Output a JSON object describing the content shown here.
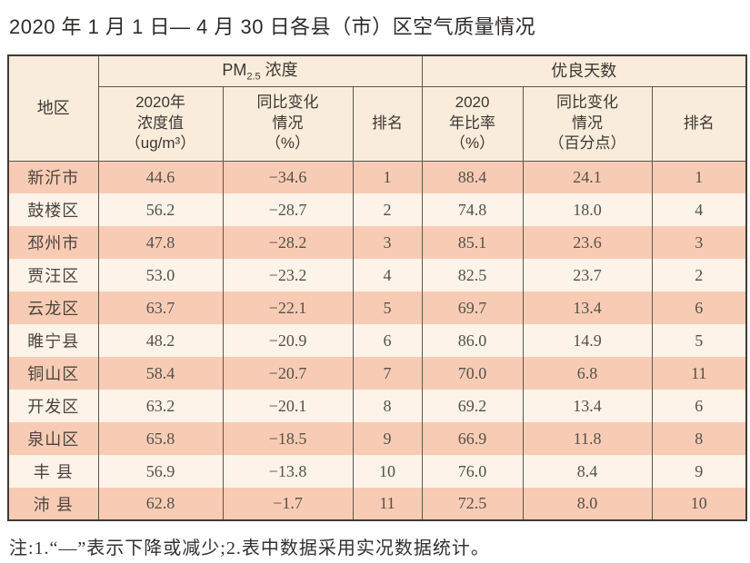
{
  "page": {
    "title": "2020 年 1 月 1 日— 4 月 30 日各县（市）区空气质量情况",
    "note": "注:1.“—”表示下降或减少;2.表中数据采用实况数据统计。"
  },
  "colors": {
    "row_salmon": "#f8ccb4",
    "row_cream": "#fdf3e9",
    "header_bg": "#f9ecda",
    "border_dark": "#3f3b37",
    "border_inner": "#5c564f",
    "title_text": "#2d2b29",
    "data_text": "#55504a",
    "header_text": "#3c3835"
  },
  "table": {
    "region_header": "地区",
    "group1": {
      "prefix": "PM",
      "subscript": "2.5",
      "label": "浓度"
    },
    "group2": "优良天数",
    "sub_headers": [
      "2020年\n浓度值\n（ug/m³）",
      "同比变化\n情况\n（%）",
      "排名",
      "2020\n年比率\n（%）",
      "同比变化\n情况\n（百分点）",
      "排名"
    ],
    "rows": [
      {
        "region": "新沂市",
        "pm_value": "44.6",
        "pm_change": "−34.6",
        "pm_rank": "1",
        "good_ratio": "88.4",
        "good_change": "24.1",
        "good_rank": "1"
      },
      {
        "region": "鼓楼区",
        "pm_value": "56.2",
        "pm_change": "−28.7",
        "pm_rank": "2",
        "good_ratio": "74.8",
        "good_change": "18.0",
        "good_rank": "4"
      },
      {
        "region": "邳州市",
        "pm_value": "47.8",
        "pm_change": "−28.2",
        "pm_rank": "3",
        "good_ratio": "85.1",
        "good_change": "23.6",
        "good_rank": "3"
      },
      {
        "region": "贾汪区",
        "pm_value": "53.0",
        "pm_change": "−23.2",
        "pm_rank": "4",
        "good_ratio": "82.5",
        "good_change": "23.7",
        "good_rank": "2"
      },
      {
        "region": "云龙区",
        "pm_value": "63.7",
        "pm_change": "−22.1",
        "pm_rank": "5",
        "good_ratio": "69.7",
        "good_change": "13.4",
        "good_rank": "6"
      },
      {
        "region": "睢宁县",
        "pm_value": "48.2",
        "pm_change": "−20.9",
        "pm_rank": "6",
        "good_ratio": "86.0",
        "good_change": "14.9",
        "good_rank": "5"
      },
      {
        "region": "铜山区",
        "pm_value": "58.4",
        "pm_change": "−20.7",
        "pm_rank": "7",
        "good_ratio": "70.0",
        "good_change": "6.8",
        "good_rank": "11"
      },
      {
        "region": "开发区",
        "pm_value": "63.2",
        "pm_change": "−20.1",
        "pm_rank": "8",
        "good_ratio": "69.2",
        "good_change": "13.4",
        "good_rank": "6"
      },
      {
        "region": "泉山区",
        "pm_value": "65.8",
        "pm_change": "−18.5",
        "pm_rank": "9",
        "good_ratio": "66.9",
        "good_change": "11.8",
        "good_rank": "8"
      },
      {
        "region": "丰 县",
        "pm_value": "56.9",
        "pm_change": "−13.8",
        "pm_rank": "10",
        "good_ratio": "76.0",
        "good_change": "8.4",
        "good_rank": "9"
      },
      {
        "region": "沛 县",
        "pm_value": "62.8",
        "pm_change": "−1.7",
        "pm_rank": "11",
        "good_ratio": "72.5",
        "good_change": "8.0",
        "good_rank": "10"
      }
    ]
  }
}
